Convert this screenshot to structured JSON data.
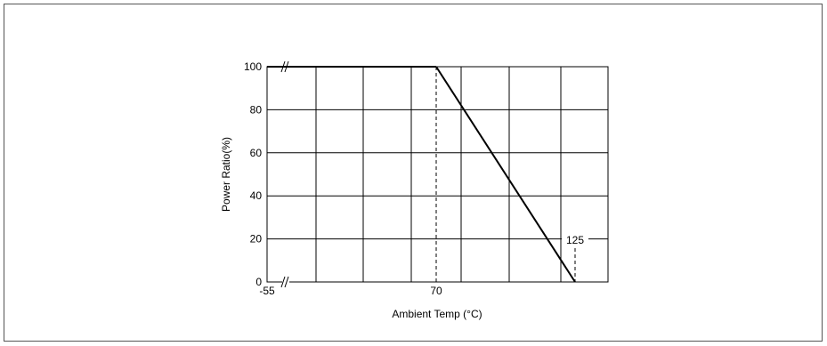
{
  "chart_data": {
    "type": "line",
    "title": "",
    "xlabel": "Ambient Temp (°C)",
    "ylabel": "Power Ratio(%)",
    "ylim": [
      0,
      100
    ],
    "yticks": [
      0,
      20,
      40,
      60,
      80,
      100
    ],
    "x_tick_labels": [
      "-55",
      "70"
    ],
    "annotation_label": "125",
    "grid": true,
    "axis_break_marks": true,
    "series": [
      {
        "x": [
          -55,
          70,
          125
        ],
        "y": [
          100,
          100,
          0
        ]
      }
    ],
    "reference_lines": [
      {
        "x": 70
      },
      {
        "x": 125
      }
    ],
    "colors": {
      "line": "#000000",
      "grid": "#000000",
      "frame": "#555555"
    }
  }
}
